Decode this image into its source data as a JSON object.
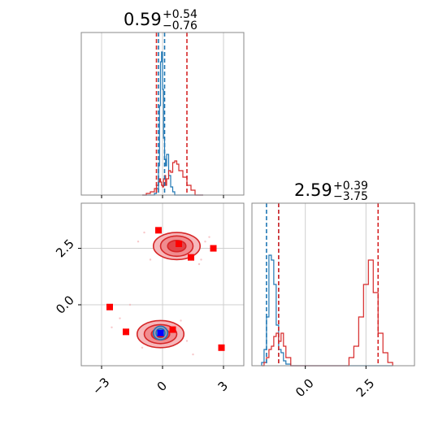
{
  "chart_data": [
    {
      "type": "histogram",
      "panel": "marginal-1",
      "title_value": "0.59",
      "title_upper": "+0.54",
      "title_lower": "−0.76",
      "xlim": [
        -4,
        4
      ],
      "grid": true,
      "colors": {
        "blue": "#1f77b4",
        "red": "#d62728"
      },
      "quantiles": {
        "blue": [
          -0.2,
          0.1
        ],
        "red": [
          -0.3,
          1.2
        ]
      },
      "bins": [
        -1.0,
        -0.8,
        -0.6,
        -0.4,
        -0.3,
        -0.2,
        -0.15,
        -0.1,
        -0.05,
        0.0,
        0.05,
        0.1,
        0.15,
        0.2,
        0.3,
        0.4,
        0.5,
        0.6,
        0.7,
        0.8,
        1.0,
        1.2,
        1.4,
        1.6,
        2.0
      ],
      "series": [
        {
          "color": "blue",
          "values": [
            0.0,
            0.0,
            0.0,
            0.01,
            0.04,
            0.18,
            0.55,
            0.82,
            0.88,
            0.65,
            0.35,
            0.22,
            0.18,
            0.25,
            0.12,
            0.05,
            0.02,
            0.0,
            0.0,
            0.0,
            0.0,
            0.0,
            0.0,
            0.0
          ]
        },
        {
          "color": "red",
          "values": [
            0.0,
            0.01,
            0.02,
            0.04,
            0.06,
            0.08,
            0.1,
            0.08,
            0.06,
            0.05,
            0.1,
            0.12,
            0.06,
            0.1,
            0.15,
            0.14,
            0.2,
            0.21,
            0.19,
            0.15,
            0.11,
            0.06,
            0.03,
            0.0
          ]
        }
      ]
    },
    {
      "type": "histogram",
      "panel": "marginal-2",
      "title_value": "2.59",
      "title_upper": "+0.39",
      "title_lower": "−3.75",
      "xlim": [
        -2.2,
        4.5
      ],
      "xticks": [
        "0.0",
        "2.5"
      ],
      "grid": true,
      "quantiles": {
        "blue": [
          -1.6,
          -1.1
        ],
        "red": [
          -1.1,
          3.0
        ]
      },
      "bins": [
        -1.8,
        -1.7,
        -1.6,
        -1.5,
        -1.4,
        -1.3,
        -1.2,
        -1.1,
        -1.0,
        -0.9,
        -0.8,
        -0.6,
        1.8,
        2.0,
        2.2,
        2.4,
        2.6,
        2.8,
        3.0,
        3.2,
        3.4,
        3.6
      ],
      "series": [
        {
          "color": "blue",
          "values": [
            0.02,
            0.1,
            0.3,
            0.68,
            0.65,
            0.5,
            0.25,
            0.1,
            0.08,
            0.03,
            0.01,
            0.0,
            0.0,
            0.0,
            0.0,
            0.0,
            0.0,
            0.0,
            0.0,
            0.0,
            0.0
          ]
        },
        {
          "color": "red",
          "values": [
            0.0,
            0.02,
            0.05,
            0.1,
            0.12,
            0.18,
            0.2,
            0.15,
            0.2,
            0.12,
            0.05,
            0.0,
            0.05,
            0.12,
            0.3,
            0.5,
            0.65,
            0.45,
            0.2,
            0.08,
            0.02
          ]
        }
      ]
    },
    {
      "type": "scatter",
      "panel": "joint",
      "xlim": [
        -4,
        4
      ],
      "ylim": [
        -2.7,
        4.5
      ],
      "xticks": [
        "−3",
        "0",
        "3"
      ],
      "yticks": [
        "0.0",
        "2.5"
      ],
      "grid": true,
      "red_samples": [
        [
          -0.2,
          3.3
        ],
        [
          0.8,
          2.7
        ],
        [
          1.4,
          2.1
        ],
        [
          2.5,
          2.5
        ],
        [
          -2.6,
          -0.1
        ],
        [
          -1.8,
          -1.2
        ],
        [
          -0.1,
          -1.3
        ],
        [
          0.5,
          -1.1
        ],
        [
          2.9,
          -1.9
        ]
      ],
      "blue_samples": [
        [
          -0.1,
          -1.25
        ]
      ],
      "red_contours": [
        {
          "cx": 0.7,
          "cy": 2.6,
          "levels": [
            [
              1.15,
              0.6
            ],
            [
              0.8,
              0.45
            ],
            [
              0.45,
              0.25
            ]
          ]
        },
        {
          "cx": -0.1,
          "cy": -1.3,
          "levels": [
            [
              1.15,
              0.6
            ],
            [
              0.8,
              0.42
            ],
            [
              0.45,
              0.25
            ]
          ]
        }
      ],
      "blue_contours": [
        {
          "cx": -0.1,
          "cy": -1.25,
          "levels": [
            [
              0.35,
              0.3
            ],
            [
              0.22,
              0.2
            ]
          ]
        }
      ],
      "scatter_points": [
        [
          -1.2,
          2.8
        ],
        [
          -0.9,
          3.2
        ],
        [
          1.9,
          2.0
        ],
        [
          2.3,
          3.0
        ],
        [
          -2.1,
          -0.6
        ],
        [
          -2.5,
          -1.0
        ],
        [
          1.2,
          -1.6
        ],
        [
          0.9,
          -0.7
        ],
        [
          -1.0,
          -1.9
        ],
        [
          1.8,
          1.8
        ],
        [
          -0.6,
          2.0
        ],
        [
          2.1,
          2.8
        ],
        [
          1.5,
          -2.2
        ],
        [
          -1.6,
          0.0
        ]
      ]
    }
  ]
}
